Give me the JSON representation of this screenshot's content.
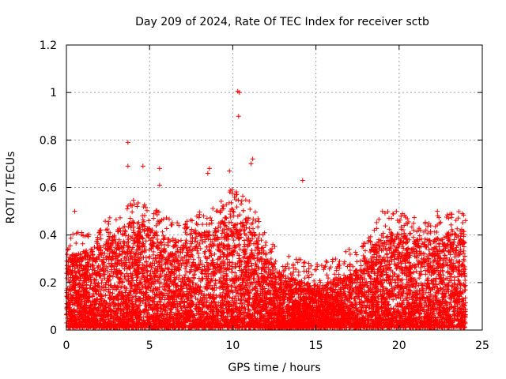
{
  "chart_data": {
    "type": "scatter",
    "title": "Day 209 of 2024, Rate Of TEC Index for receiver sctb",
    "xlabel": "GPS time / hours",
    "ylabel": "ROTI / TECUs",
    "xlim": [
      0,
      25
    ],
    "ylim": [
      0,
      1.2
    ],
    "xticks": [
      0,
      5,
      10,
      15,
      20,
      25
    ],
    "xtick_labels": [
      "0",
      "5",
      "10",
      "15",
      "20",
      "25"
    ],
    "yticks": [
      0,
      0.2,
      0.4,
      0.6,
      0.8,
      1.0,
      1.2
    ],
    "ytick_labels": [
      "0",
      "0.2",
      "0.4",
      "0.6",
      "0.8",
      "1",
      "1.2"
    ],
    "grid": true,
    "marker": "plus",
    "color": "#ff0000",
    "series": [
      {
        "name": "ROTI",
        "envelope": {
          "x": [
            0,
            1,
            2,
            3,
            4,
            5,
            6,
            7,
            8,
            9,
            10,
            11,
            12,
            13,
            14,
            15,
            16,
            17,
            18,
            19,
            20,
            21,
            22,
            23,
            24
          ],
          "typical_max": [
            0.3,
            0.32,
            0.35,
            0.4,
            0.45,
            0.42,
            0.38,
            0.36,
            0.4,
            0.42,
            0.5,
            0.45,
            0.3,
            0.22,
            0.2,
            0.18,
            0.2,
            0.22,
            0.3,
            0.4,
            0.4,
            0.38,
            0.38,
            0.4,
            0.4
          ]
        },
        "outliers": [
          {
            "x": 3.7,
            "y": 0.79
          },
          {
            "x": 3.7,
            "y": 0.69
          },
          {
            "x": 4.6,
            "y": 0.69
          },
          {
            "x": 5.6,
            "y": 0.68
          },
          {
            "x": 5.6,
            "y": 0.61
          },
          {
            "x": 8.6,
            "y": 0.68
          },
          {
            "x": 8.5,
            "y": 0.66
          },
          {
            "x": 9.8,
            "y": 0.67
          },
          {
            "x": 10.3,
            "y": 1.005
          },
          {
            "x": 10.4,
            "y": 1.0
          },
          {
            "x": 10.35,
            "y": 0.9
          },
          {
            "x": 11.2,
            "y": 0.72
          },
          {
            "x": 11.1,
            "y": 0.7
          },
          {
            "x": 14.2,
            "y": 0.63
          },
          {
            "x": 0.5,
            "y": 0.5
          },
          {
            "x": 19.0,
            "y": 0.5
          },
          {
            "x": 20.2,
            "y": 0.49
          },
          {
            "x": 22.3,
            "y": 0.5
          },
          {
            "x": 23.8,
            "y": 0.49
          },
          {
            "x": 16.8,
            "y": 0.33
          },
          {
            "x": 17.0,
            "y": 0.34
          }
        ]
      }
    ]
  }
}
